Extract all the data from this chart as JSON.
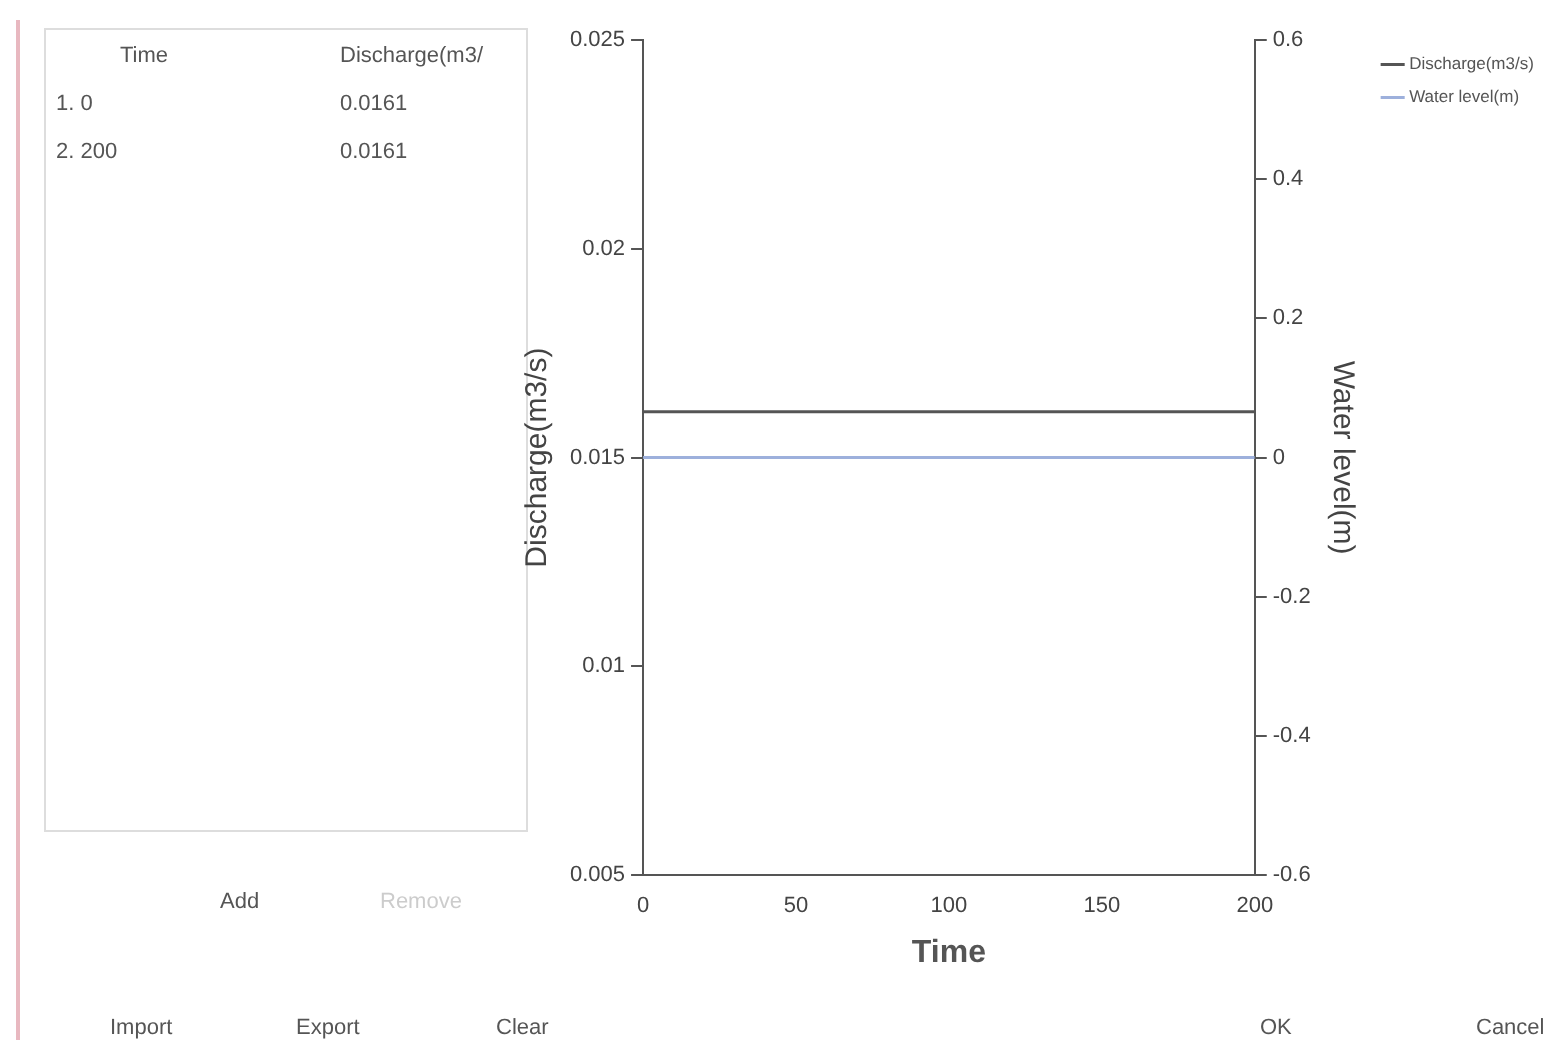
{
  "chart_data": {
    "type": "line",
    "xlabel": "Time",
    "ylabel": "Discharge(m3/s)",
    "y2label": "Water level(m)",
    "x": [
      0,
      200
    ],
    "series": [
      {
        "name": "Discharge(m3/s)",
        "color": "#555555",
        "values": [
          0.0161,
          0.0161
        ]
      },
      {
        "name": "Water level(m)",
        "color": "#9db0dc",
        "values": [
          0,
          0
        ],
        "axis": "y2"
      }
    ],
    "xlim": [
      0,
      200
    ],
    "xticks": [
      0,
      50,
      100,
      150,
      200
    ],
    "ylim": [
      0.005,
      0.025
    ],
    "yticks": [
      0.005,
      0.01,
      0.015,
      0.02,
      0.025
    ],
    "y2lim": [
      -0.6,
      0.6
    ],
    "y2ticks": [
      -0.6,
      -0.4,
      -0.2,
      0,
      0.2,
      0.4,
      0.6
    ],
    "grid": false,
    "legend": "top right",
    "marker": "none",
    "line_style": "solid",
    "annotations": [
      "Time",
      "Discharge(m3/",
      "1. 0",
      "0.0161",
      "2. 200",
      "0.0161",
      "Add",
      "Remove",
      "Import",
      "Export",
      "Clear",
      "OK",
      "Cancel"
    ]
  }
}
